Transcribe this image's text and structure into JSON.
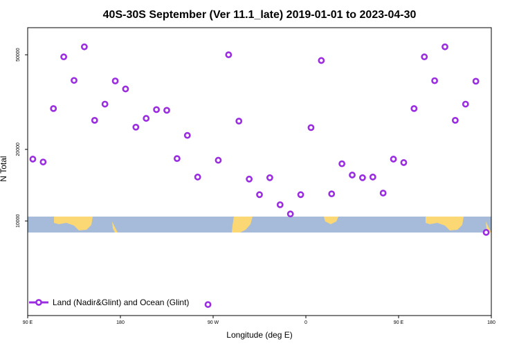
{
  "chart_data": {
    "type": "scatter",
    "title": "40S-30S September (Ver 11.1_late)   2019-01-01 to 2023-04-30",
    "xlabel": "Longitude (deg E)",
    "ylabel": "N Total",
    "y_scale": "log",
    "xlim": [
      90,
      540
    ],
    "ylim": [
      4000,
      65000
    ],
    "x_ticks": [
      {
        "value": 90,
        "label": "90 E"
      },
      {
        "value": 180,
        "label": "180"
      },
      {
        "value": 270,
        "label": "90 W"
      },
      {
        "value": 360,
        "label": "0"
      },
      {
        "value": 450,
        "label": "90 E"
      },
      {
        "value": 540,
        "label": "180"
      }
    ],
    "y_ticks": [
      {
        "value": 10000,
        "label": "10000"
      },
      {
        "value": 20000,
        "label": "20000"
      },
      {
        "value": 50000,
        "label": "50000"
      }
    ],
    "series": [
      {
        "name": "Land (Nadir&Glint) and Ocean (Glint)",
        "color": "#9b2de0",
        "marker": "open-circle",
        "x": [
          95,
          105,
          115,
          125,
          135,
          145,
          155,
          165,
          175,
          185,
          195,
          205,
          215,
          225,
          235,
          245,
          255,
          265,
          275,
          285,
          295,
          305,
          315,
          325,
          335,
          345,
          355,
          365,
          375,
          385,
          395,
          405,
          415,
          425,
          435,
          445,
          455,
          465,
          475,
          485,
          495,
          505,
          515,
          525,
          535
        ],
        "y": [
          18200,
          17700,
          29700,
          49000,
          39000,
          54000,
          26500,
          31000,
          38800,
          35900,
          24800,
          27000,
          29400,
          29200,
          18300,
          22900,
          15300,
          4450,
          18000,
          50000,
          26300,
          15000,
          12900,
          15200,
          11700,
          10700,
          12900,
          24700,
          47300,
          13000,
          17400,
          15600,
          15200,
          15300,
          13100,
          18200,
          17600,
          29700,
          49000,
          38900,
          54000,
          26500,
          31000,
          38700,
          8950
        ]
      }
    ],
    "background_map": "land-ocean strip (latitude band 40S-30S)",
    "grid": false,
    "legend_position": "bottom-left",
    "colors": {
      "land": "#fcd875",
      "ocean": "#a6bbd9",
      "marker": "#9b2de0"
    }
  }
}
